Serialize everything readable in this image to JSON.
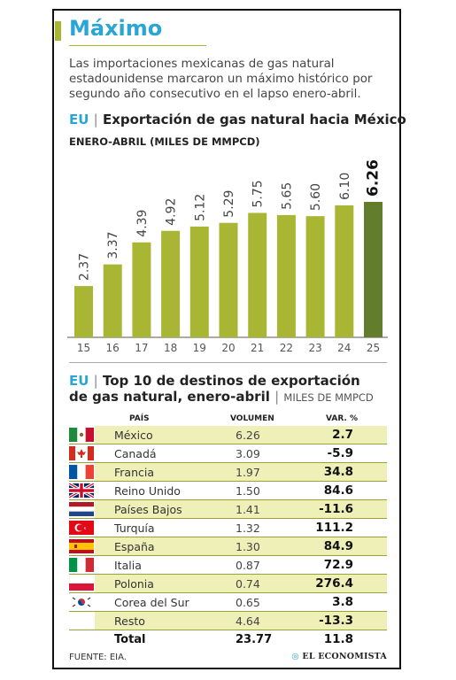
{
  "title": "Máximo",
  "intro": "Las importaciones mexicanas de gas natural estadounidense marcaron un máximo histórico por segundo año consecutivo en el lapso enero-abril.",
  "section1": {
    "tag": "EU",
    "divider": "|",
    "title": "Exportación de gas natural hacia México",
    "subtitle": "ENERO-ABRIL (MILES DE MMPCD)"
  },
  "chart_data": {
    "type": "bar",
    "categories": [
      "15",
      "16",
      "17",
      "18",
      "19",
      "20",
      "21",
      "22",
      "23",
      "24",
      "25"
    ],
    "values": [
      2.37,
      3.37,
      4.39,
      4.92,
      5.12,
      5.29,
      5.75,
      5.65,
      5.6,
      6.1,
      6.26
    ],
    "labels": [
      "2.37",
      "3.37",
      "4.39",
      "4.92",
      "5.12",
      "5.29",
      "5.75",
      "5.65",
      "5.60",
      "6.10",
      "6.26"
    ],
    "title": "Exportación de gas natural hacia México",
    "ylabel": "ENERO-ABRIL (MILES DE MMPCD)",
    "ylim": [
      0,
      6.26
    ],
    "bar_color": "#a8b634",
    "highlight_color": "#627d2c",
    "highlight_index": 10,
    "grid": false
  },
  "section2": {
    "tag": "EU",
    "divider": "|",
    "title": "Top 10 de destinos de exportación de gas natural, enero-abril",
    "divider2": "|",
    "units": "MILES DE MMPCD"
  },
  "table": {
    "headers": {
      "country": "PAÍS",
      "volume": "VOLUMEN",
      "var": "VAR. %"
    },
    "rows": [
      {
        "flag": "mexico-flag",
        "country": "México",
        "volume": "6.26",
        "var": "2.7"
      },
      {
        "flag": "canada-flag",
        "country": "Canadá",
        "volume": "3.09",
        "var": "-5.9"
      },
      {
        "flag": "france-flag",
        "country": "Francia",
        "volume": "1.97",
        "var": "34.8"
      },
      {
        "flag": "uk-flag",
        "country": "Reino Unido",
        "volume": "1.50",
        "var": "84.6"
      },
      {
        "flag": "netherlands-flag",
        "country": "Países Bajos",
        "volume": "1.41",
        "var": "-11.6"
      },
      {
        "flag": "turkey-flag",
        "country": "Turquía",
        "volume": "1.32",
        "var": "111.2"
      },
      {
        "flag": "spain-flag",
        "country": "España",
        "volume": "1.30",
        "var": "84.9"
      },
      {
        "flag": "italy-flag",
        "country": "Italia",
        "volume": "0.87",
        "var": "72.9"
      },
      {
        "flag": "poland-flag",
        "country": "Polonia",
        "volume": "0.74",
        "var": "276.4"
      },
      {
        "flag": "south-korea-flag",
        "country": "Corea del Sur",
        "volume": "0.65",
        "var": "3.8"
      },
      {
        "flag": "",
        "country": "Resto",
        "volume": "4.64",
        "var": "-13.3"
      }
    ],
    "total": {
      "country": "Total",
      "volume": "23.77",
      "var": "11.8"
    }
  },
  "source": "FUENTE: EIA.",
  "brand": "EL ECONOMISTA"
}
